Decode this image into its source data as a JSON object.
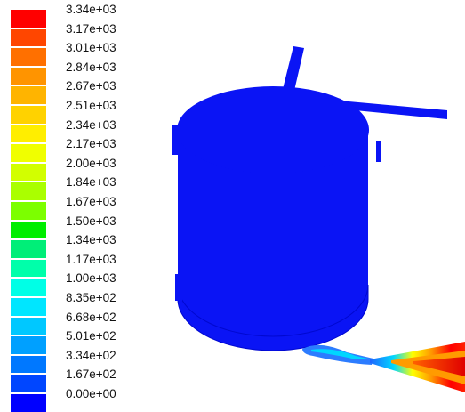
{
  "legend": {
    "labels": [
      "3.34e+03",
      "3.17e+03",
      "3.01e+03",
      "2.84e+03",
      "2.67e+03",
      "2.51e+03",
      "2.34e+03",
      "2.17e+03",
      "2.00e+03",
      "1.84e+03",
      "1.67e+03",
      "1.50e+03",
      "1.34e+03",
      "1.17e+03",
      "1.00e+03",
      "8.35e+02",
      "6.68e+02",
      "5.01e+02",
      "3.34e+02",
      "1.67e+02",
      "0.00e+00"
    ],
    "colors": [
      "#ff0000",
      "#ff4600",
      "#ff7000",
      "#ff9400",
      "#ffb400",
      "#ffd200",
      "#ffee00",
      "#f0ff00",
      "#d2ff00",
      "#aaff00",
      "#7cff00",
      "#00ee00",
      "#00ee78",
      "#00ffaa",
      "#00ffe6",
      "#00e6ff",
      "#00c8ff",
      "#00a0ff",
      "#0078ff",
      "#0046ff",
      "#0000ff"
    ]
  },
  "scene": {
    "vessel_color": "#0a14f5",
    "outline_color": "#0000c8",
    "jet_colors": [
      "#3fa0ff",
      "#00ffff",
      "#ffff00",
      "#ff8c00",
      "#ff0000"
    ]
  }
}
